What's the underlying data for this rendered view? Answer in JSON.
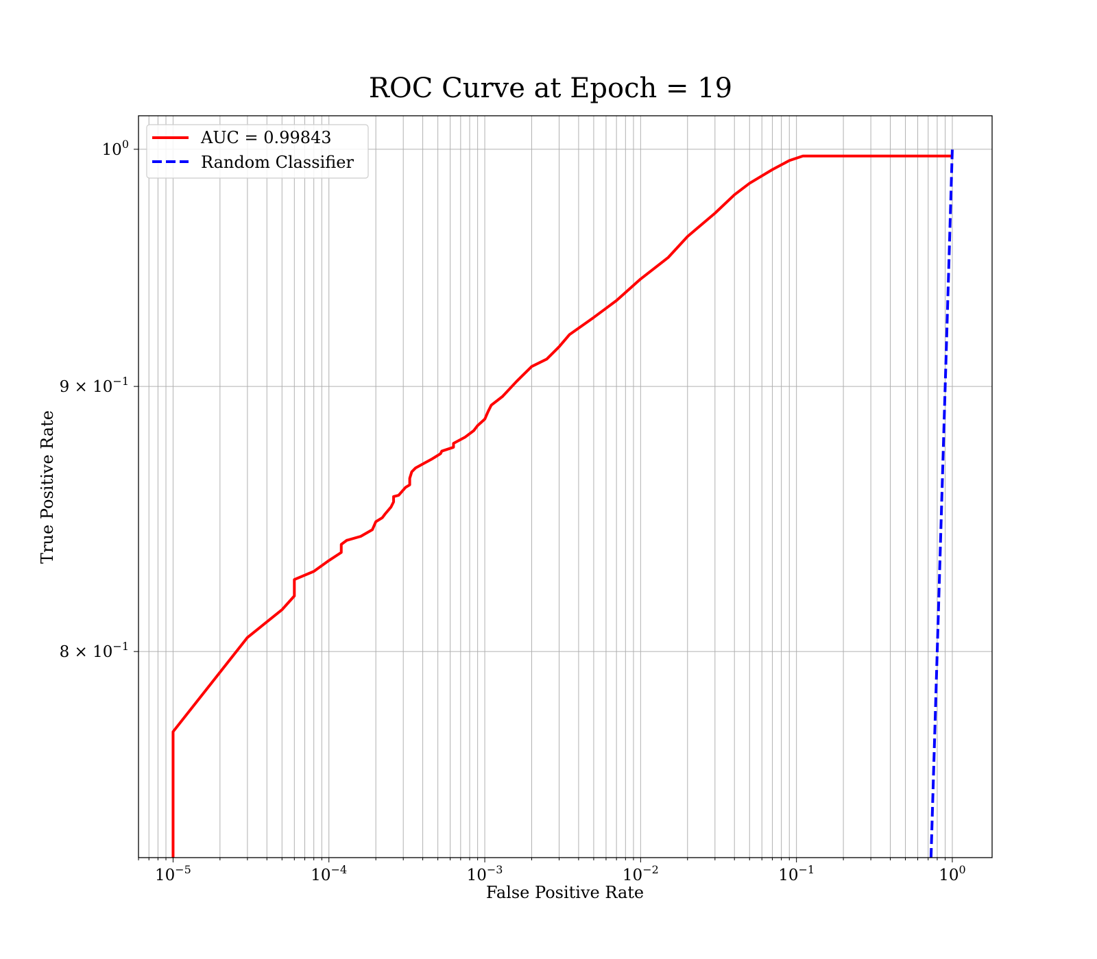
{
  "chart_data": {
    "type": "line",
    "title": "ROC Curve at Epoch = 19",
    "xlabel": "False Positive Rate",
    "ylabel": "True Positive Rate",
    "xscale": "log",
    "yscale": "log",
    "xlim": [
      6e-06,
      1.8
    ],
    "ylim": [
      0.73,
      1.015
    ],
    "grid": "both (major and minor)",
    "legend_position": "top-left",
    "x_ticks": [
      {
        "value": 1e-05,
        "base": "10",
        "exp": "−5"
      },
      {
        "value": 0.0001,
        "base": "10",
        "exp": "−4"
      },
      {
        "value": 0.001,
        "base": "10",
        "exp": "−3"
      },
      {
        "value": 0.01,
        "base": "10",
        "exp": "−2"
      },
      {
        "value": 0.1,
        "base": "10",
        "exp": "−1"
      },
      {
        "value": 1,
        "base": "10",
        "exp": "0"
      }
    ],
    "y_ticks": [
      {
        "value": 1.0,
        "base": "10",
        "exp": "0"
      },
      {
        "value": 0.9,
        "base": "9 × 10",
        "exp": "−1"
      },
      {
        "value": 0.8,
        "base": "8 × 10",
        "exp": "−1"
      }
    ],
    "series": [
      {
        "name": "AUC = 0.99843",
        "color": "#ff0000",
        "style": "solid",
        "x": [
          1e-05,
          1e-05,
          1e-05,
          3e-05,
          5e-05,
          6e-05,
          6e-05,
          8e-05,
          0.0001,
          0.00012,
          0.00012,
          0.00013,
          0.00016,
          0.00019,
          0.0002,
          0.00022,
          0.00023,
          0.00025,
          0.00026,
          0.00026,
          0.00028,
          0.00031,
          0.00033,
          0.00033,
          0.00034,
          0.00036,
          0.0004,
          0.00046,
          0.00052,
          0.00053,
          0.00063,
          0.00063,
          0.00075,
          0.00085,
          0.0009,
          0.001,
          0.00105,
          0.0011,
          0.0013,
          0.0016,
          0.002,
          0.0025,
          0.003,
          0.0035,
          0.005,
          0.007,
          0.01,
          0.015,
          0.02,
          0.03,
          0.04,
          0.05,
          0.07,
          0.09,
          0.11,
          0.2,
          0.5,
          1
        ],
        "y": [
          0.73,
          0.735,
          0.772,
          0.805,
          0.815,
          0.82,
          0.826,
          0.829,
          0.833,
          0.836,
          0.839,
          0.8405,
          0.842,
          0.8445,
          0.8475,
          0.849,
          0.8505,
          0.853,
          0.855,
          0.857,
          0.8575,
          0.8605,
          0.8615,
          0.864,
          0.8665,
          0.868,
          0.8695,
          0.8715,
          0.8735,
          0.8745,
          0.876,
          0.8775,
          0.88,
          0.8825,
          0.8845,
          0.887,
          0.89,
          0.8925,
          0.896,
          0.902,
          0.908,
          0.911,
          0.916,
          0.921,
          0.928,
          0.935,
          0.944,
          0.953,
          0.962,
          0.972,
          0.98,
          0.985,
          0.991,
          0.995,
          0.997,
          0.997,
          0.997,
          0.997
        ]
      },
      {
        "name": "Random Classifier",
        "color": "#0000ff",
        "style": "dashed",
        "x": [
          0.73,
          0.75,
          0.8,
          0.85,
          0.9,
          0.95,
          1.0
        ],
        "y": [
          0.73,
          0.75,
          0.8,
          0.85,
          0.9,
          0.95,
          1.0
        ]
      }
    ]
  }
}
